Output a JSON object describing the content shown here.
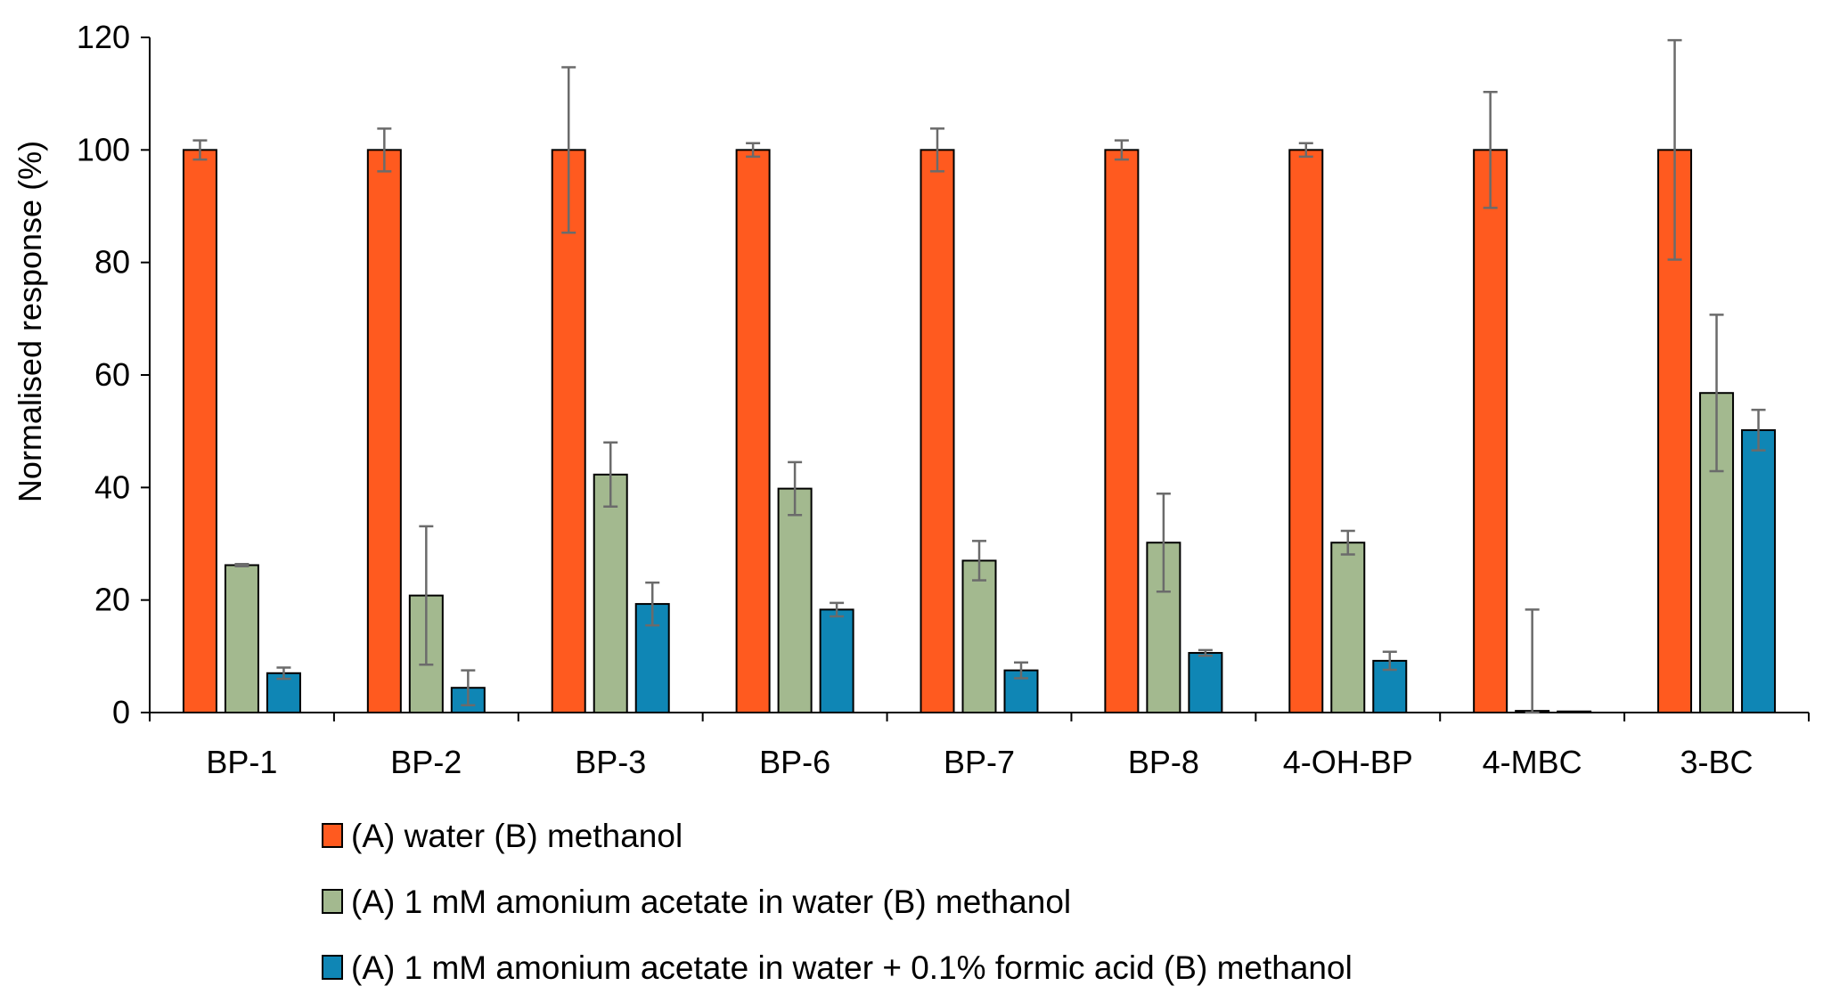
{
  "chart_data": {
    "type": "bar",
    "title": "",
    "xlabel": "",
    "ylabel": "Normalised response (%)",
    "ylim": [
      0,
      120
    ],
    "yticks": [
      0,
      20,
      40,
      60,
      80,
      100,
      120
    ],
    "grid": false,
    "legend_position": "bottom",
    "categories": [
      "BP-1",
      "BP-2",
      "BP-3",
      "BP-6",
      "BP-7",
      "BP-8",
      "4-OH-BP",
      "4-MBC",
      "3-BC"
    ],
    "series": [
      {
        "name": "(A) water (B) methanol",
        "color": "#FF5A1F",
        "values": [
          100,
          100,
          100,
          100,
          100,
          100,
          100,
          100,
          100
        ],
        "errors": [
          1.7,
          3.8,
          14.7,
          1.2,
          3.8,
          1.7,
          1.2,
          10.3,
          19.5
        ]
      },
      {
        "name": "(A) 1 mM amonium acetate in water (B) methanol",
        "color": "#A3B98F",
        "values": [
          26.2,
          20.8,
          42.3,
          39.8,
          27.0,
          30.2,
          30.2,
          0.3,
          56.8
        ],
        "errors": [
          0.2,
          12.3,
          5.7,
          4.7,
          3.5,
          8.7,
          2.1,
          18.0,
          13.9
        ]
      },
      {
        "name": "(A) 1 mM amonium acetate in water + 0.1% formic acid (B) methanol",
        "color": "#0F86B5",
        "values": [
          7.0,
          4.4,
          19.3,
          18.3,
          7.5,
          10.6,
          9.2,
          0.2,
          50.2
        ],
        "errors": [
          1.0,
          3.1,
          3.8,
          1.2,
          1.4,
          0.5,
          1.6,
          0,
          3.6
        ]
      }
    ]
  }
}
